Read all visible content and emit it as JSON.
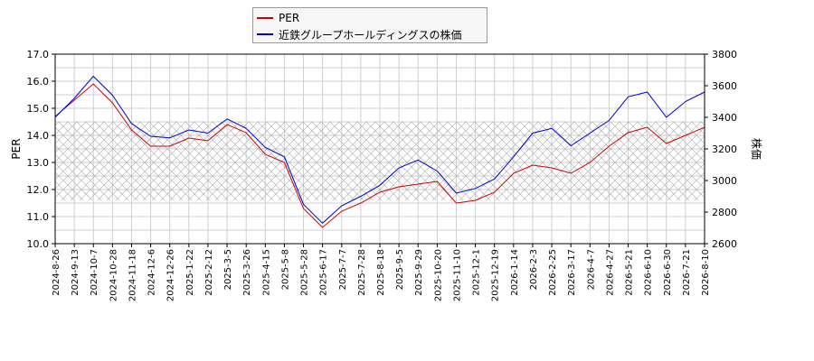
{
  "chart_data": {
    "type": "line",
    "xlabel": "",
    "ylabel_left": "PER",
    "ylabel_right": "株価",
    "ylim_left": [
      10.0,
      17.0
    ],
    "ylim_right": [
      2600,
      3800
    ],
    "yticks_left": [
      "10.0",
      "11.0",
      "12.0",
      "13.0",
      "14.0",
      "15.0",
      "16.0",
      "17.0"
    ],
    "yticks_right": [
      "2600",
      "2800",
      "3000",
      "3200",
      "3400",
      "3600",
      "3800"
    ],
    "grid": true,
    "legend_position": "top-center",
    "hatched_band": [
      11.6,
      14.5
    ],
    "categories": [
      "2024-8-26",
      "2024-9-13",
      "2024-10-7",
      "2024-10-28",
      "2024-11-18",
      "2024-12-6",
      "2024-12-26",
      "2025-1-22",
      "2025-2-12",
      "2025-3-5",
      "2025-3-26",
      "2025-4-15",
      "2025-5-8",
      "2025-5-28",
      "2025-6-17",
      "2025-7-7",
      "2025-7-28",
      "2025-8-18",
      "2025-9-5",
      "2025-9-29",
      "2025-10-20",
      "2025-11-10",
      "2025-12-1",
      "2025-12-19",
      "2026-1-14",
      "2026-2-3",
      "2026-2-25",
      "2026-3-17",
      "2026-4-7",
      "2026-4-27",
      "2026-5-21",
      "2026-6-10",
      "2026-6-30",
      "2026-7-21",
      "2026-8-10"
    ],
    "series": [
      {
        "name": "PER",
        "axis": "left",
        "color": "#cc0000",
        "values": [
          14.7,
          15.3,
          15.9,
          15.2,
          14.2,
          13.6,
          13.6,
          13.9,
          13.8,
          14.4,
          14.1,
          13.3,
          13.0,
          11.3,
          10.6,
          11.2,
          11.5,
          11.9,
          12.1,
          12.2,
          12.3,
          11.5,
          11.6,
          11.9,
          12.6,
          12.9,
          12.8,
          12.6,
          13.0,
          13.6,
          14.1,
          14.3,
          13.7,
          14.0,
          14.3
        ]
      },
      {
        "name": "近鉄グループホールディングスの株価",
        "axis": "right",
        "color": "#0000cc",
        "values": [
          3400,
          3520,
          3660,
          3540,
          3360,
          3280,
          3270,
          3320,
          3300,
          3390,
          3330,
          3210,
          3150,
          2850,
          2730,
          2840,
          2900,
          2970,
          3080,
          3130,
          3060,
          2920,
          2950,
          3010,
          3150,
          3300,
          3330,
          3220,
          3300,
          3380,
          3530,
          3560,
          3400,
          3500,
          3560
        ]
      }
    ]
  },
  "legend": {
    "per_label": "PER",
    "price_label": "近鉄グループホールディングスの株価",
    "per_color": "#cc0000",
    "price_color": "#0000cc"
  }
}
